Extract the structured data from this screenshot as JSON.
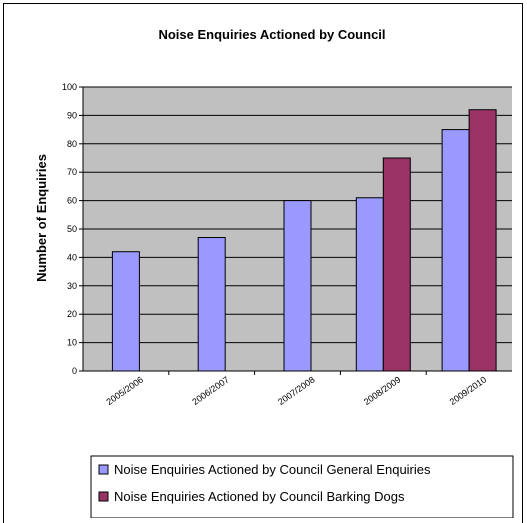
{
  "colors": {
    "plot_bg": "#c0c0c0",
    "series1": "#9999ff",
    "series2": "#993366",
    "gridline": "#000000"
  },
  "chart_data": {
    "type": "bar",
    "title": "Noise Enquiries Actioned by Council",
    "xlabel": "",
    "ylabel": "Number of Enquiries",
    "ylim": [
      0,
      100
    ],
    "yticks": [
      0,
      10,
      20,
      30,
      40,
      50,
      60,
      70,
      80,
      90,
      100
    ],
    "grid": true,
    "legend_position": "bottom",
    "categories": [
      "2005/2006",
      "2006/2007",
      "2007/2008",
      "2008/2009",
      "2009/2010"
    ],
    "series": [
      {
        "name": "Noise Enquiries Actioned by Council General Enquiries",
        "values": [
          42,
          47,
          60,
          61,
          85
        ]
      },
      {
        "name": "Noise Enquiries Actioned by Council Barking Dogs",
        "values": [
          null,
          null,
          null,
          75,
          92
        ]
      }
    ]
  }
}
